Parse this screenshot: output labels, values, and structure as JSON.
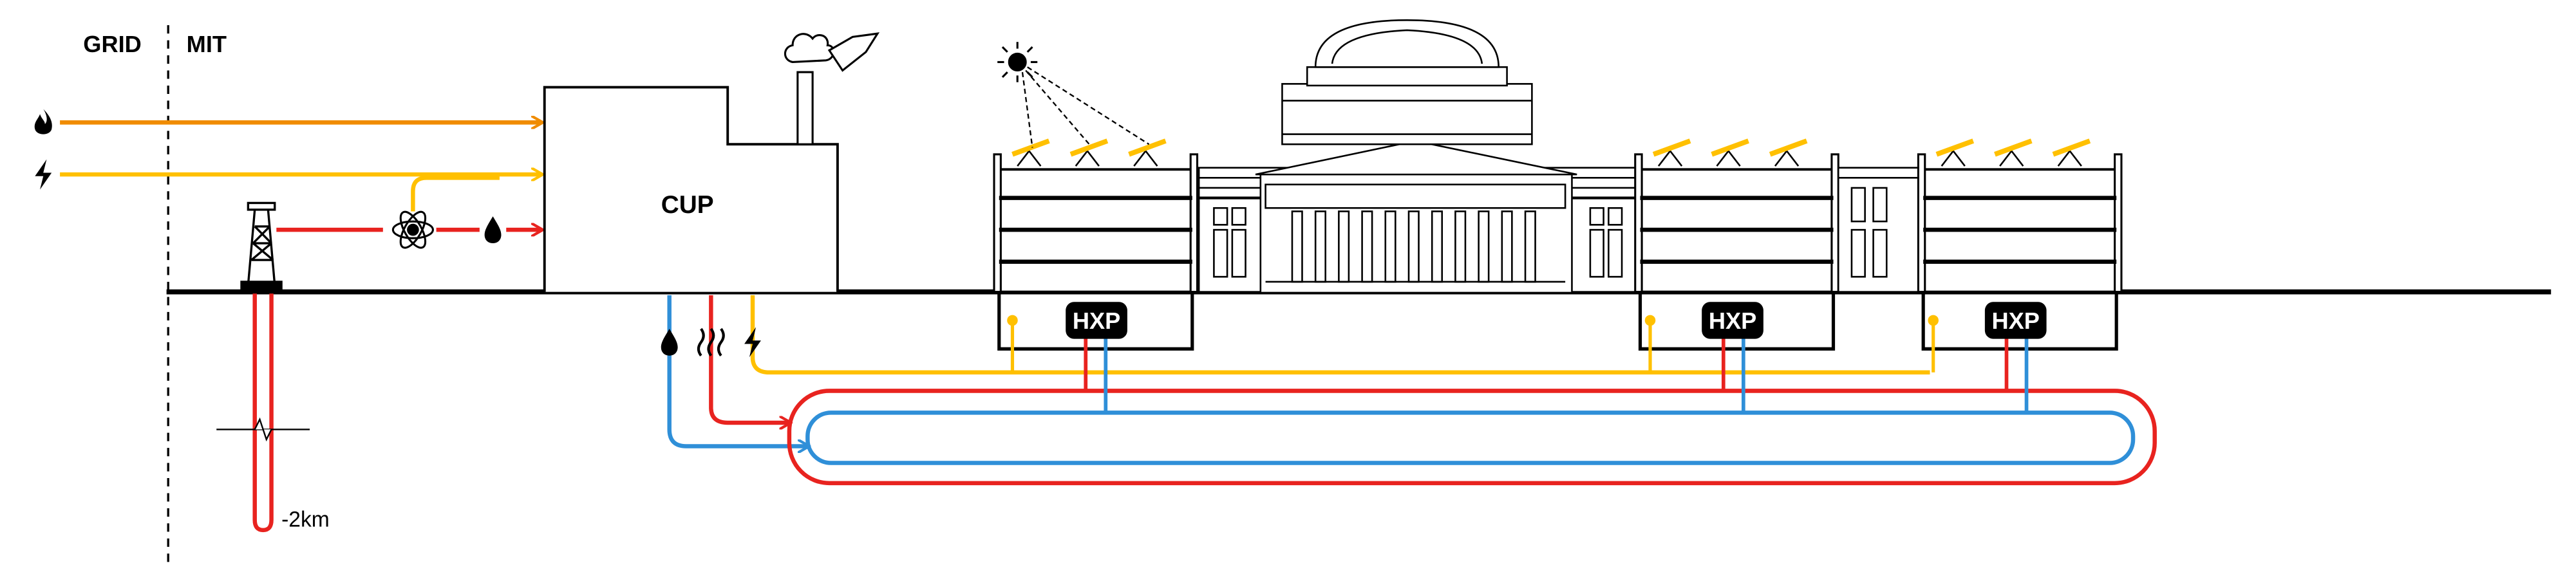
{
  "labels": {
    "grid": "GRID",
    "mit": "MIT",
    "cup": "CUP",
    "hxp_1": "HXP",
    "hxp_2": "HXP",
    "hxp_3": "HXP",
    "depth": "-2km"
  },
  "icons": {
    "gas_flame": "flame-icon",
    "grid_electricity": "lightning-icon",
    "geothermal_rig": "drilling-rig-icon",
    "nuclear_atom": "atom-icon",
    "water_drop": "droplet-icon",
    "heat_waves": "heat-icon",
    "sun": "sun-icon",
    "chimney_smoke": "smoke-icon"
  },
  "colors": {
    "gas_line": "#f08c00",
    "electric_line": "#ffc000",
    "hot_line": "#e8231f",
    "cold_line": "#2f8fd8",
    "structure": "#000000",
    "solar_panel": "#ffc000"
  }
}
